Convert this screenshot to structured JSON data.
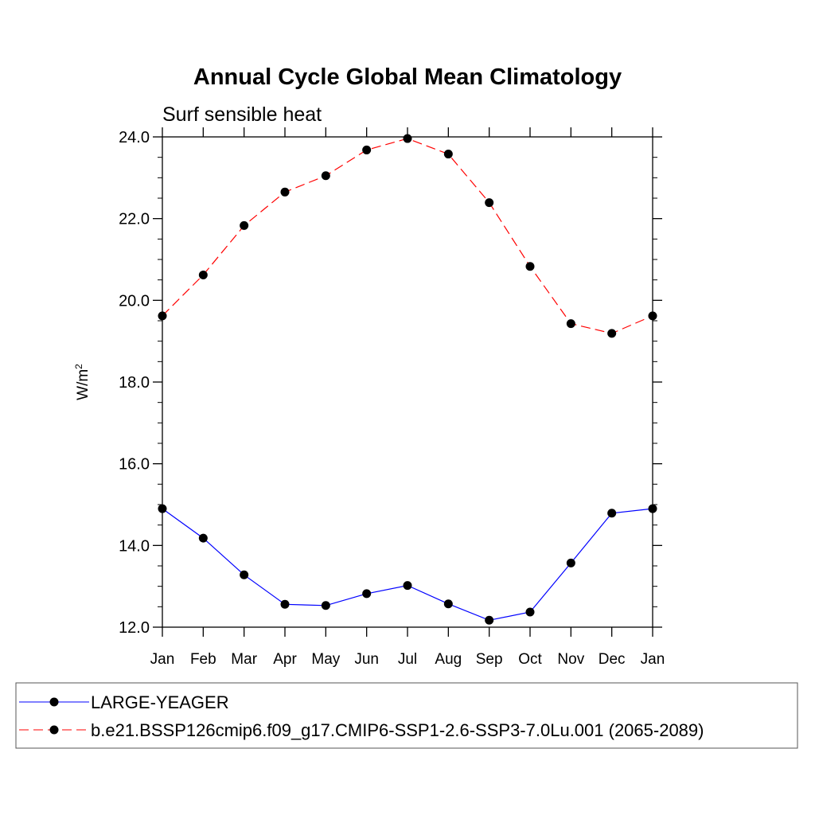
{
  "chart_data": {
    "type": "line",
    "title": "Annual Cycle Global Mean Climatology",
    "subtitle": "Surf sensible heat",
    "ylabel": "W/m",
    "ylabel_superscript": "2",
    "xlabel": "",
    "categories": [
      "Jan",
      "Feb",
      "Mar",
      "Apr",
      "May",
      "Jun",
      "Jul",
      "Aug",
      "Sep",
      "Oct",
      "Nov",
      "Dec",
      "Jan"
    ],
    "ylim": [
      12.0,
      24.0
    ],
    "yticks": [
      12.0,
      14.0,
      16.0,
      18.0,
      20.0,
      22.0,
      24.0
    ],
    "ytick_labels": [
      "12.0",
      "14.0",
      "16.0",
      "18.0",
      "20.0",
      "22.0",
      "24.0"
    ],
    "grid": false,
    "legend_position": "bottom",
    "series": [
      {
        "name": "LARGE-YEAGER",
        "color": "#0000ff",
        "dash": "solid",
        "marker": "filled-circle",
        "values": [
          14.9,
          14.18,
          13.28,
          12.56,
          12.53,
          12.82,
          13.02,
          12.57,
          12.17,
          12.37,
          13.57,
          14.79,
          14.9
        ]
      },
      {
        "name": "b.e21.BSSP126cmip6.f09_g17.CMIP6-SSP1-2.6-SSP3-7.0Lu.001 (2065-2089)",
        "color": "#ff0000",
        "dash": "dashed",
        "marker": "filled-circle",
        "values": [
          19.62,
          20.62,
          21.83,
          22.65,
          23.05,
          23.68,
          23.96,
          23.58,
          22.39,
          20.83,
          19.43,
          19.19,
          19.62
        ]
      }
    ]
  }
}
